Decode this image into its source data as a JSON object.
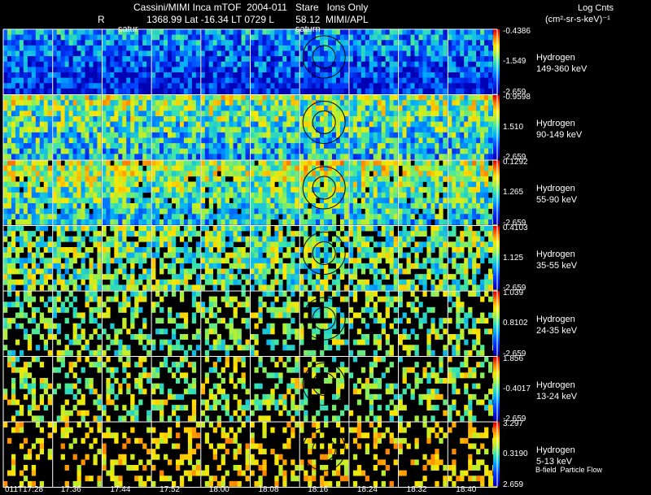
{
  "header": {
    "line1": "Cassini/MIMI Inca mTOF  2004-011   Stare   Ions Only",
    "r_label": "R",
    "line2": "1368.99 Lat -16.34 LT 0729 L        58.12  MIMI/APL",
    "units_title": "Log Cnts",
    "units_line2": "(cm²-sr-s-keV)⁻¹",
    "saturn_label": "saturn",
    "saturn_label_left": "satur"
  },
  "rows": [
    {
      "species": "Hydrogen",
      "energy": "149-360 keV",
      "cb_max": "-0.4386",
      "cb_mid": "-1.549",
      "cb_min": "-2.659"
    },
    {
      "species": "Hydrogen",
      "energy": "90-149 keV",
      "cb_max": "-0.9598",
      "cb_mid": "1.510",
      "cb_min": "-2.659"
    },
    {
      "species": "Hydrogen",
      "energy": "55-90 keV",
      "cb_max": "0.1292",
      "cb_mid": "1.265",
      "cb_min": "-2.659"
    },
    {
      "species": "Hydrogen",
      "energy": "35-55 keV",
      "cb_max": "0.4103",
      "cb_mid": "1.125",
      "cb_min": "-2.659"
    },
    {
      "species": "Hydrogen",
      "energy": "24-35 keV",
      "cb_max": "1.039",
      "cb_mid": "0.8102",
      "cb_min": "-2.659"
    },
    {
      "species": "Hydrogen",
      "energy": "13-24 keV",
      "cb_max": "1.856",
      "cb_mid": "-0.4017",
      "cb_min": "-2.659"
    },
    {
      "species": "Hydrogen",
      "energy": "5-13 keV",
      "cb_max": "3.297",
      "cb_mid": "0.3190",
      "cb_min": "2.659"
    }
  ],
  "times": [
    "011T17:28",
    "17:36",
    "17:44",
    "17:52",
    "18:00",
    "18:08",
    "18:16",
    "18:24",
    "18:32",
    "18:40"
  ],
  "footer_note": "B-field  Particle Flow",
  "colors": {
    "background": "#000000",
    "grid_lines": "#ffffff"
  }
}
